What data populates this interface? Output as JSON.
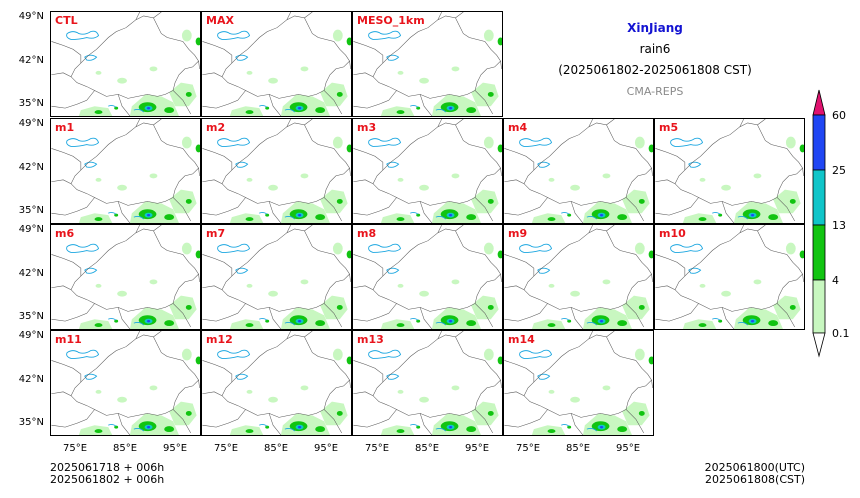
{
  "header": {
    "region": "XinJiang",
    "variable": "rain6",
    "period": "(2025061802-2025061808 CST)",
    "source": "CMA-REPS"
  },
  "panels": [
    "CTL",
    "MAX",
    "MESO_1km",
    "m1",
    "m2",
    "m3",
    "m4",
    "m5",
    "m6",
    "m7",
    "m8",
    "m9",
    "m10",
    "m11",
    "m12",
    "m13",
    "m14"
  ],
  "axes": {
    "lat_ticks": [
      "49°N",
      "42°N",
      "35°N"
    ],
    "lon_ticks": [
      "75°E",
      "85°E",
      "95°E"
    ]
  },
  "colorbar": {
    "levels": [
      "0.1",
      "4",
      "13",
      "25",
      "60"
    ],
    "colors": [
      "#c8f7c0",
      "#11c411",
      "#10c5c9",
      "#2046f3",
      "#e0126f"
    ]
  },
  "footer": {
    "init_line1": "2025061718  +  006h",
    "init_line2": "2025061802  +  006h",
    "valid_utc": "2025061800(UTC)",
    "valid_cst": "2025061808(CST)"
  },
  "colors": {
    "label_red": "#e8141c",
    "title_blue": "#1414d2",
    "source_grey": "#8a8a8a"
  }
}
